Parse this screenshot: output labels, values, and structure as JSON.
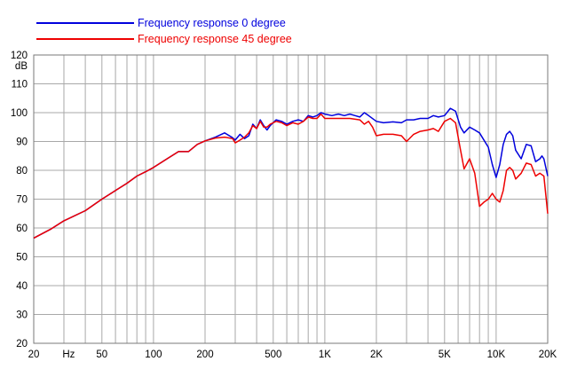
{
  "chart_data": {
    "type": "line",
    "title": "",
    "xlabel": "Hz",
    "ylabel": "dB",
    "x_scale": "log",
    "xlim": [
      20,
      20000
    ],
    "ylim": [
      20,
      120
    ],
    "grid": true,
    "legend_position": "top-left",
    "x_tick_labels": [
      {
        "value": 20,
        "label": "20"
      },
      {
        "value": 50,
        "label": "50"
      },
      {
        "value": 100,
        "label": "100"
      },
      {
        "value": 200,
        "label": "200"
      },
      {
        "value": 500,
        "label": "500"
      },
      {
        "value": 1000,
        "label": "1K"
      },
      {
        "value": 2000,
        "label": "2K"
      },
      {
        "value": 5000,
        "label": "5K"
      },
      {
        "value": 10000,
        "label": "10K"
      },
      {
        "value": 20000,
        "label": "20K"
      }
    ],
    "x_gridlines": [
      20,
      30,
      40,
      50,
      60,
      70,
      80,
      90,
      100,
      200,
      300,
      400,
      500,
      600,
      700,
      800,
      900,
      1000,
      2000,
      3000,
      4000,
      5000,
      6000,
      7000,
      8000,
      9000,
      10000,
      20000
    ],
    "y_ticks": [
      20,
      30,
      40,
      50,
      60,
      70,
      80,
      90,
      100,
      110,
      120
    ],
    "series": [
      {
        "name": "Frequency response 0 degree",
        "color": "#0000dd",
        "points": [
          [
            20,
            56.5
          ],
          [
            25,
            59.5
          ],
          [
            30,
            62.5
          ],
          [
            40,
            66
          ],
          [
            50,
            70
          ],
          [
            60,
            73
          ],
          [
            70,
            75.5
          ],
          [
            80,
            78
          ],
          [
            90,
            79.5
          ],
          [
            100,
            81
          ],
          [
            120,
            84
          ],
          [
            140,
            86.5
          ],
          [
            160,
            86.5
          ],
          [
            180,
            89
          ],
          [
            200,
            90.2
          ],
          [
            230,
            91.5
          ],
          [
            260,
            93
          ],
          [
            290,
            91.3
          ],
          [
            300,
            90.5
          ],
          [
            320,
            92.5
          ],
          [
            340,
            91
          ],
          [
            360,
            92
          ],
          [
            380,
            96
          ],
          [
            400,
            94.5
          ],
          [
            420,
            97.5
          ],
          [
            440,
            95.5
          ],
          [
            460,
            94
          ],
          [
            480,
            95.5
          ],
          [
            520,
            97.5
          ],
          [
            560,
            97
          ],
          [
            600,
            96
          ],
          [
            650,
            97
          ],
          [
            700,
            97.5
          ],
          [
            750,
            97
          ],
          [
            800,
            99
          ],
          [
            850,
            98.5
          ],
          [
            900,
            99
          ],
          [
            950,
            100
          ],
          [
            1000,
            99.5
          ],
          [
            1100,
            99
          ],
          [
            1200,
            99.5
          ],
          [
            1300,
            99
          ],
          [
            1400,
            99.5
          ],
          [
            1500,
            99
          ],
          [
            1600,
            98.5
          ],
          [
            1700,
            100
          ],
          [
            1800,
            99
          ],
          [
            2000,
            97
          ],
          [
            2200,
            96.5
          ],
          [
            2500,
            96.8
          ],
          [
            2800,
            96.5
          ],
          [
            3000,
            97.5
          ],
          [
            3300,
            97.5
          ],
          [
            3600,
            98
          ],
          [
            4000,
            98
          ],
          [
            4300,
            99
          ],
          [
            4600,
            98.5
          ],
          [
            5000,
            99
          ],
          [
            5400,
            101.5
          ],
          [
            5800,
            100.5
          ],
          [
            6200,
            95
          ],
          [
            6500,
            93
          ],
          [
            7000,
            95
          ],
          [
            7500,
            94
          ],
          [
            8000,
            93
          ],
          [
            9000,
            88
          ],
          [
            9500,
            82
          ],
          [
            10000,
            77.5
          ],
          [
            10500,
            82
          ],
          [
            11000,
            89
          ],
          [
            11500,
            92.5
          ],
          [
            12000,
            93.5
          ],
          [
            12500,
            92
          ],
          [
            13000,
            87
          ],
          [
            14000,
            84
          ],
          [
            15000,
            89
          ],
          [
            16000,
            88.5
          ],
          [
            17000,
            83
          ],
          [
            18000,
            84
          ],
          [
            18500,
            85
          ],
          [
            19000,
            84
          ],
          [
            20000,
            78
          ]
        ]
      },
      {
        "name": "Frequency response 45 degree",
        "color": "#ee0000",
        "points": [
          [
            20,
            56.5
          ],
          [
            25,
            59.5
          ],
          [
            30,
            62.5
          ],
          [
            40,
            66
          ],
          [
            50,
            70
          ],
          [
            60,
            73
          ],
          [
            70,
            75.5
          ],
          [
            80,
            78
          ],
          [
            90,
            79.5
          ],
          [
            100,
            81
          ],
          [
            120,
            84
          ],
          [
            140,
            86.5
          ],
          [
            160,
            86.5
          ],
          [
            180,
            89
          ],
          [
            200,
            90.2
          ],
          [
            230,
            91.2
          ],
          [
            260,
            91.5
          ],
          [
            290,
            91
          ],
          [
            300,
            89.5
          ],
          [
            320,
            90.5
          ],
          [
            340,
            91.5
          ],
          [
            360,
            93
          ],
          [
            380,
            95.5
          ],
          [
            400,
            94.5
          ],
          [
            420,
            97
          ],
          [
            440,
            95
          ],
          [
            460,
            95
          ],
          [
            480,
            96
          ],
          [
            520,
            97
          ],
          [
            560,
            96.5
          ],
          [
            600,
            95.5
          ],
          [
            650,
            96.5
          ],
          [
            700,
            96
          ],
          [
            750,
            97
          ],
          [
            800,
            98.5
          ],
          [
            850,
            98
          ],
          [
            900,
            98
          ],
          [
            950,
            99.5
          ],
          [
            1000,
            98
          ],
          [
            1200,
            98
          ],
          [
            1400,
            98
          ],
          [
            1600,
            97.5
          ],
          [
            1700,
            96
          ],
          [
            1800,
            97
          ],
          [
            1900,
            95
          ],
          [
            2000,
            92
          ],
          [
            2200,
            92.5
          ],
          [
            2500,
            92.5
          ],
          [
            2800,
            92
          ],
          [
            3000,
            90
          ],
          [
            3300,
            92.5
          ],
          [
            3600,
            93.5
          ],
          [
            4000,
            94
          ],
          [
            4300,
            94.5
          ],
          [
            4600,
            93.5
          ],
          [
            5000,
            97
          ],
          [
            5400,
            98
          ],
          [
            5800,
            96.5
          ],
          [
            6200,
            87
          ],
          [
            6500,
            80.5
          ],
          [
            7000,
            84
          ],
          [
            7500,
            79
          ],
          [
            8000,
            67.5
          ],
          [
            8500,
            69
          ],
          [
            9000,
            70
          ],
          [
            9500,
            72
          ],
          [
            10000,
            70
          ],
          [
            10500,
            69
          ],
          [
            11000,
            73
          ],
          [
            11500,
            80
          ],
          [
            12000,
            81
          ],
          [
            12500,
            80
          ],
          [
            13000,
            77
          ],
          [
            14000,
            79
          ],
          [
            15000,
            82.5
          ],
          [
            16000,
            82
          ],
          [
            17000,
            78
          ],
          [
            18000,
            79
          ],
          [
            19000,
            78
          ],
          [
            20000,
            65
          ]
        ]
      }
    ]
  }
}
